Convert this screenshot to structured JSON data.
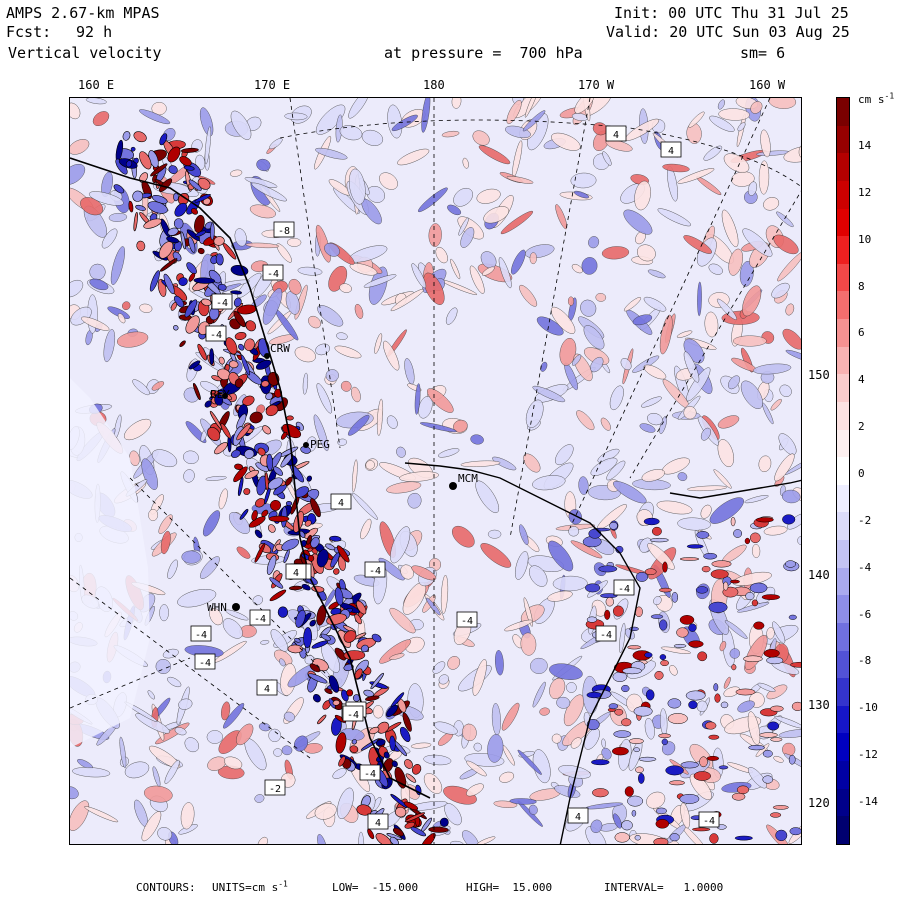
{
  "header": {
    "model": "AMPS 2.67-km MPAS",
    "init": "Init: 00 UTC Thu 31 Jul 25",
    "forecast_label": "Fcst:",
    "forecast_value": "92 h",
    "valid": "Valid: 20 UTC Sun 03 Aug 25",
    "field": "Vertical velocity",
    "level": "at pressure =  700 hPa",
    "smoothing": "sm= 6"
  },
  "top_axis": [
    "160 E",
    "170 E",
    "180",
    "170 W",
    "160 W"
  ],
  "right_axis": [
    "150 W",
    "140 W",
    "130 W",
    "120 W"
  ],
  "colorbar": {
    "units": "cm s",
    "units_exp": "-1",
    "labels": [
      "14",
      "12",
      "10",
      "8",
      "6",
      "4",
      "2",
      "0",
      "-2",
      "-4",
      "-6",
      "-8",
      "-10",
      "-12",
      "-14"
    ],
    "colors": [
      "#7a0000",
      "#960000",
      "#b40000",
      "#cc0000",
      "#e00000",
      "#ee2020",
      "#f24848",
      "#f46e6e",
      "#f69292",
      "#f8b2b2",
      "#facccc",
      "#fce2e2",
      "#fdf0f0",
      "#ffffff",
      "#eeeeff",
      "#dcdcfa",
      "#c4c4f4",
      "#aaaaee",
      "#8e8ee8",
      "#7070e0",
      "#5252d6",
      "#3434cc",
      "#1616c8",
      "#0000c0",
      "#0000a4",
      "#00008a",
      "#000070"
    ]
  },
  "stations": [
    "MCM",
    "CRW",
    "BEY",
    "PEG",
    "WHN"
  ],
  "box_labels": [
    "4",
    "4",
    "-8",
    "-4",
    "-4",
    "-4",
    "4",
    "4",
    "-4",
    "-4",
    "-4",
    "4",
    "-4",
    "-4",
    "-4",
    "-4",
    "-4",
    "-4",
    "4",
    "4",
    "-4",
    "4",
    "-2",
    "-4",
    "-4"
  ],
  "footer": {
    "contours": "CONTOURS:",
    "units_label": "UNITS=cm s",
    "units_exp": "-1",
    "low": "LOW=  -15.000",
    "high": "HIGH=  15.000",
    "interval": "INTERVAL=   1.0000"
  }
}
